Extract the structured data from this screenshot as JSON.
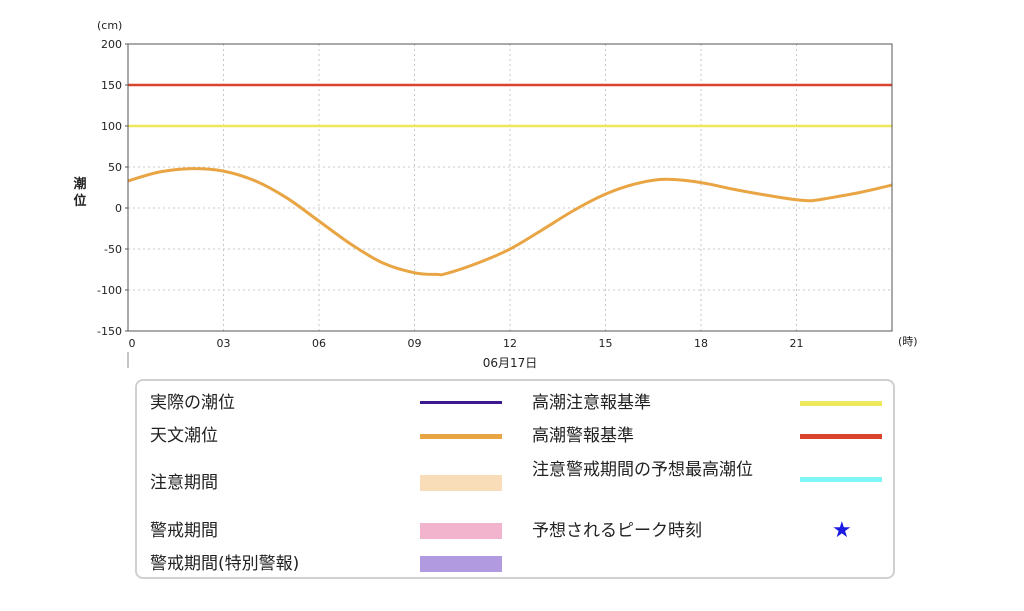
{
  "chart_data": {
    "type": "line",
    "title": "",
    "ylabel": "潮位",
    "y_unit": "(cm)",
    "x_unit": "(時)",
    "date_label": "06月17日",
    "xlim": [
      0,
      24
    ],
    "ylim": [
      -150,
      200
    ],
    "x_ticks": [
      "0",
      "03",
      "06",
      "09",
      "12",
      "15",
      "18",
      "21"
    ],
    "x_tick_values": [
      0,
      3,
      6,
      9,
      12,
      15,
      18,
      21
    ],
    "y_ticks": [
      200,
      150,
      100,
      50,
      0,
      -50,
      -100,
      -150
    ],
    "grid": true,
    "thresholds": [
      {
        "name": "高潮警報基準",
        "value": 150,
        "color": "#d9442c"
      },
      {
        "name": "高潮注意報基準",
        "value": 100,
        "color": "#eee85a"
      }
    ],
    "series": [
      {
        "name": "天文潮位",
        "color": "#e9a544",
        "x": [
          0,
          1,
          2,
          3,
          4,
          5,
          6,
          7,
          8,
          9,
          9.7,
          10,
          11,
          12,
          13,
          14,
          15,
          16,
          16.9,
          18,
          19,
          20,
          21,
          21.5,
          22,
          23,
          24
        ],
        "y": [
          33,
          44,
          48,
          45,
          33,
          12,
          -16,
          -44,
          -67,
          -79,
          -81,
          -80,
          -67,
          -50,
          -27,
          -3,
          17,
          30,
          35,
          31,
          23,
          16,
          10,
          9,
          12,
          19,
          28
        ]
      }
    ]
  },
  "legend": {
    "items": [
      {
        "label": "実際の潮位",
        "kind": "line",
        "color": "#3a1a8c"
      },
      {
        "label": "天文潮位",
        "kind": "line",
        "color": "#e9a544"
      },
      {
        "label": "注意期間",
        "kind": "box",
        "color": "#f8ddb8"
      },
      {
        "label": "警戒期間",
        "kind": "box",
        "color": "#f2b3cc"
      },
      {
        "label": "警戒期間(特別警報)",
        "kind": "box",
        "color": "#b29ae0"
      },
      {
        "label": "高潮注意報基準",
        "kind": "line",
        "color": "#eee85a"
      },
      {
        "label": "高潮警報基準",
        "kind": "line",
        "color": "#d9442c"
      },
      {
        "label": "注意警戒期間の予想最高潮位",
        "kind": "line",
        "color": "#7ef6f6"
      },
      {
        "label": "予想されるピーク時刻",
        "kind": "star",
        "color": "#1a1ae0",
        "symbol": "★"
      }
    ]
  }
}
